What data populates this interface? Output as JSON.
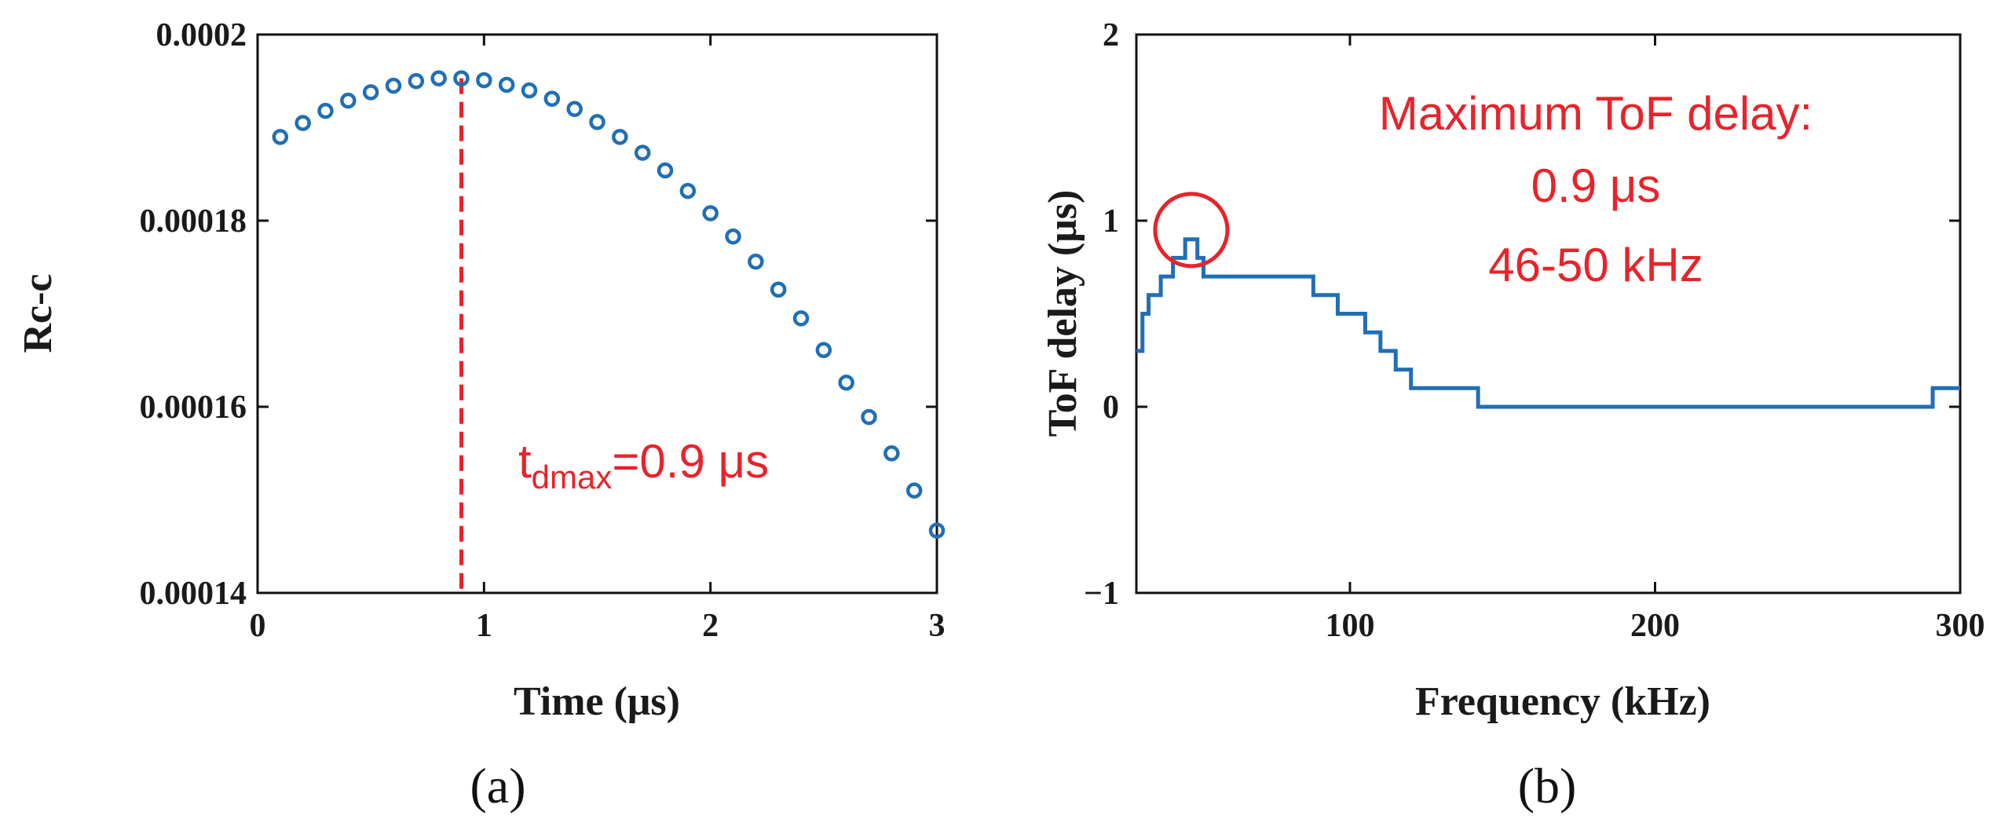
{
  "chart_data": [
    {
      "type": "scatter",
      "panel_label": "(a)",
      "title": "",
      "xlabel": "Time (μs)",
      "ylabel": "Rc-c",
      "xlim": [
        0,
        3
      ],
      "ylim": [
        0.00014,
        0.0002
      ],
      "xticks": [
        0,
        1,
        2,
        3
      ],
      "xtick_labels": [
        "0",
        "1",
        "2",
        "3"
      ],
      "yticks": [
        0.00014,
        0.00016,
        0.00018,
        0.0002
      ],
      "ytick_labels": [
        "0.00014",
        "0.00016",
        "0.00018",
        "0.0002"
      ],
      "marker_color": "#1f6fb5",
      "x": [
        0.1,
        0.2,
        0.3,
        0.4,
        0.5,
        0.6,
        0.7,
        0.8,
        0.9,
        1.0,
        1.1,
        1.2,
        1.3,
        1.4,
        1.5,
        1.6,
        1.7,
        1.8,
        1.9,
        2.0,
        2.1,
        2.2,
        2.3,
        2.4,
        2.5,
        2.6,
        2.7,
        2.8,
        2.9,
        3.0
      ],
      "y": [
        0.000189,
        0.0001905,
        0.0001918,
        0.0001929,
        0.0001938,
        0.0001945,
        0.000195,
        0.0001953,
        0.0001953,
        0.0001951,
        0.0001946,
        0.000194,
        0.0001931,
        0.000192,
        0.0001906,
        0.000189,
        0.0001873,
        0.0001854,
        0.0001832,
        0.0001808,
        0.0001783,
        0.0001756,
        0.0001726,
        0.0001695,
        0.0001661,
        0.0001626,
        0.0001589,
        0.000155,
        0.000151,
        0.0001467
      ],
      "vline": {
        "x": 0.9,
        "color": "#e8232a",
        "style": "dashed"
      },
      "annotation": {
        "base": "t",
        "sub": "dmax",
        "rest": "=0.9 μs",
        "color": "#e8232a"
      }
    },
    {
      "type": "line",
      "panel_label": "(b)",
      "title": "",
      "xlabel": "Frequency (kHz)",
      "ylabel": "ToF delay (μs)",
      "xlim": [
        30,
        300
      ],
      "ylim": [
        -1,
        2
      ],
      "xticks": [
        100,
        200,
        300
      ],
      "xtick_labels": [
        "100",
        "200",
        "300"
      ],
      "yticks": [
        -1,
        0,
        1,
        2
      ],
      "ytick_labels": [
        "−1",
        "0",
        "1",
        "2"
      ],
      "line_color": "#1f6fb5",
      "x": [
        30,
        32,
        34,
        38,
        42,
        46,
        50,
        52,
        88,
        96,
        105,
        110,
        115,
        120,
        126,
        142,
        290,
        291,
        300
      ],
      "y": [
        0.3,
        0.5,
        0.6,
        0.7,
        0.8,
        0.9,
        0.8,
        0.7,
        0.6,
        0.5,
        0.4,
        0.3,
        0.2,
        0.1,
        0.1,
        0.0,
        0.0,
        0.1,
        0.1
      ],
      "highlight_circle": {
        "x": 48,
        "y": 0.95,
        "color": "#e8232a"
      },
      "annotation_lines": [
        "Maximum ToF delay:",
        "0.9 μs",
        "46-50 kHz"
      ],
      "annotation_color": "#e8232a"
    }
  ]
}
